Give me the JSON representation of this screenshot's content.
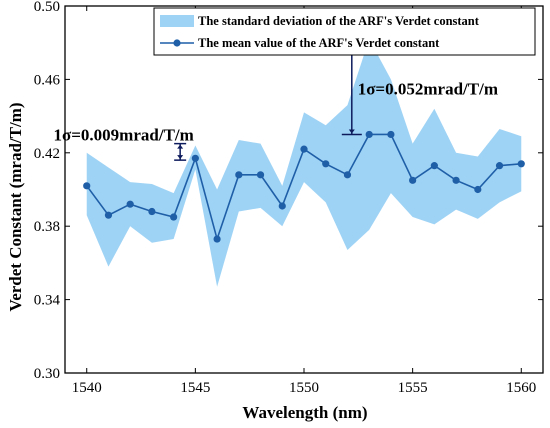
{
  "chart_data": {
    "type": "line",
    "xlabel": "Wavelength (nm)",
    "ylabel": "Verdet Constant (mrad/T/m)",
    "xlim": [
      1539,
      1561
    ],
    "ylim": [
      0.3,
      0.5
    ],
    "xticks": [
      1540,
      1545,
      1550,
      1555,
      1560
    ],
    "yticks": [
      "0.30",
      "0.34",
      "0.38",
      "0.42",
      "0.46",
      "0.50"
    ],
    "grid": false,
    "legend_position": "top",
    "x": [
      1540,
      1541,
      1542,
      1543,
      1544,
      1545,
      1546,
      1547,
      1548,
      1549,
      1550,
      1551,
      1552,
      1553,
      1554,
      1555,
      1556,
      1557,
      1558,
      1559,
      1560
    ],
    "series": [
      {
        "name": "The mean value of the ARF's Verdet constant",
        "values": [
          0.402,
          0.386,
          0.392,
          0.388,
          0.385,
          0.417,
          0.373,
          0.408,
          0.408,
          0.391,
          0.422,
          0.414,
          0.408,
          0.43,
          0.43,
          0.405,
          0.413,
          0.405,
          0.4,
          0.413,
          0.414
        ],
        "color": "#1f5fa8"
      }
    ],
    "band": {
      "name": "The standard deviation of the ARF's Verdet constant",
      "upper": [
        0.42,
        0.412,
        0.404,
        0.403,
        0.398,
        0.424,
        0.4,
        0.427,
        0.425,
        0.402,
        0.442,
        0.435,
        0.446,
        0.482,
        0.46,
        0.425,
        0.444,
        0.42,
        0.418,
        0.433,
        0.429
      ],
      "lower": [
        0.386,
        0.358,
        0.38,
        0.371,
        0.373,
        0.411,
        0.347,
        0.388,
        0.39,
        0.38,
        0.404,
        0.393,
        0.367,
        0.378,
        0.398,
        0.385,
        0.381,
        0.389,
        0.384,
        0.393,
        0.399
      ],
      "color": "#9fd3f5"
    },
    "annotations": [
      {
        "text": "1σ=0.009mrad/T/m",
        "x": 1544.3,
        "y_low": 0.416,
        "y_high": 0.425,
        "label_x": 1541.7,
        "label_y": 0.43
      },
      {
        "text": "1σ=0.052mrad/T/m",
        "x": 1552.2,
        "y_low": 0.43,
        "y_high": 0.481,
        "label_x": 1555.7,
        "label_y": 0.455
      }
    ]
  }
}
